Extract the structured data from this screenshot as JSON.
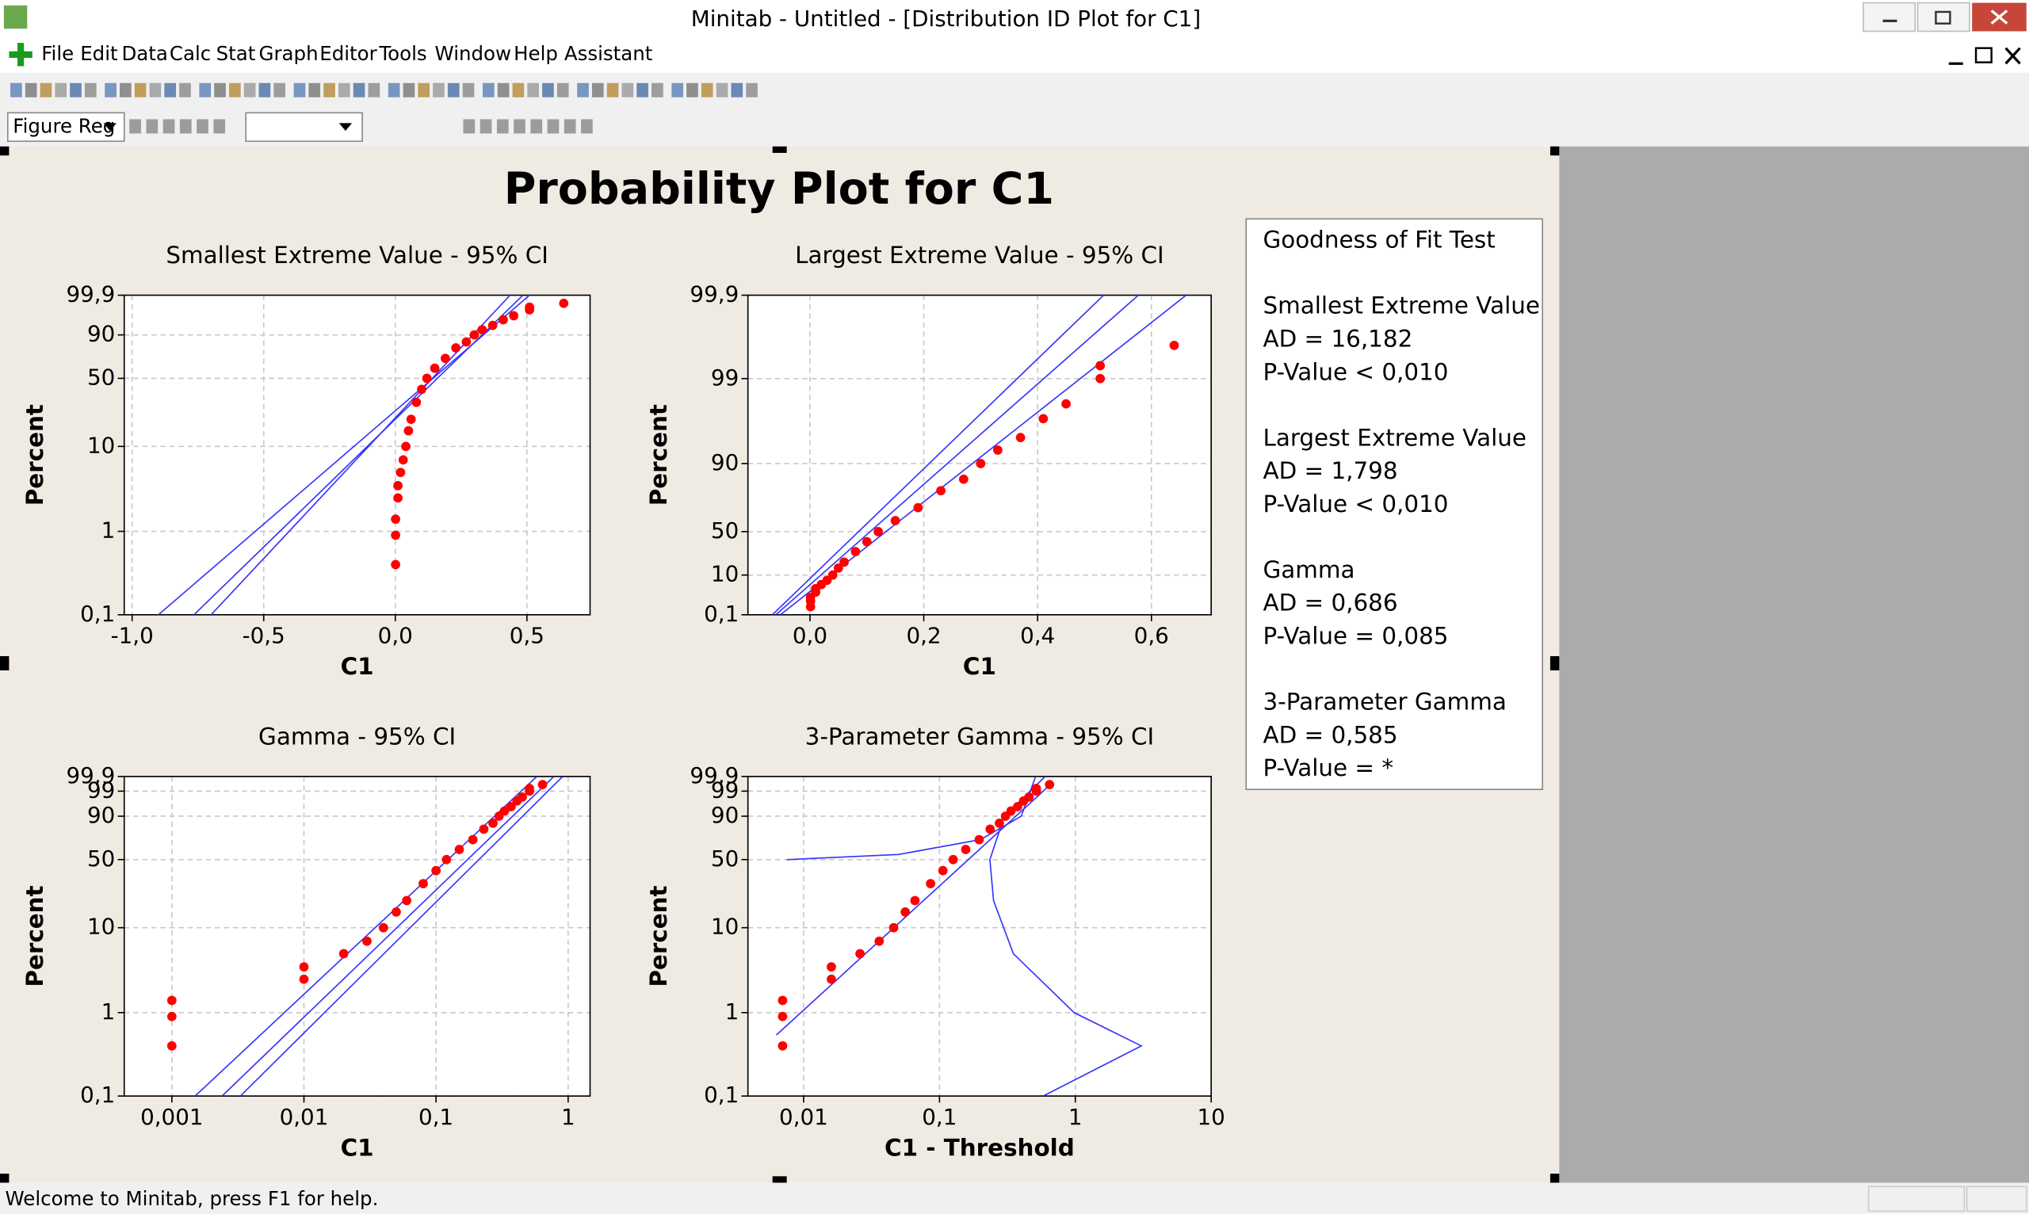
{
  "window": {
    "title": "Minitab - Untitled - [Distribution ID Plot for C1]"
  },
  "menu": [
    "File",
    "Edit",
    "Data",
    "Calc",
    "Stat",
    "Graph",
    "Editor",
    "Tools",
    "Window",
    "Help",
    "Assistant"
  ],
  "toolbar": {
    "figure_region": "Figure Reg"
  },
  "figure_title": "Probability Plot for C1",
  "chart_data": [
    {
      "type": "scatter",
      "title": "Smallest Extreme Value - 95% CI",
      "x_label": "C1",
      "y_label": "Percent",
      "y_scale": "sev",
      "x_log": false,
      "grid": true,
      "xlim": [
        -1.03,
        0.74
      ],
      "xticks": [
        {
          "value": -1,
          "label": "-1,0"
        },
        {
          "value": -0.5,
          "label": "-0,5"
        },
        {
          "value": 0,
          "label": "0,0"
        },
        {
          "value": 0.5,
          "label": "0,5"
        }
      ],
      "ylim": [
        0.1,
        99.9
      ],
      "yticks": [
        {
          "value": 0.1,
          "label": "0,1"
        },
        1,
        10,
        50,
        90,
        {
          "value": 99.9,
          "label": "99,9"
        }
      ],
      "series": [
        {
          "color": "#ff0000",
          "x": [
            0.001,
            0.001,
            0.001,
            0.01,
            0.01,
            0.02,
            0.03,
            0.04,
            0.05,
            0.06,
            0.08,
            0.1,
            0.12,
            0.15,
            0.19,
            0.23,
            0.27,
            0.3,
            0.33,
            0.37,
            0.41,
            0.45,
            0.51,
            0.51,
            0.64
          ],
          "values": [
            0.4,
            0.9,
            1.4,
            2.5,
            3.5,
            5,
            7,
            10,
            15,
            20,
            30,
            40,
            50,
            60,
            70,
            80,
            85,
            90,
            93,
            95,
            97,
            98,
            99,
            99.3,
            99.6
          ]
        }
      ],
      "fit_lines": [
        {
          "color": "#3333ff",
          "x": [
            -0.765,
            0.485
          ],
          "values": [
            0.1,
            99.9
          ]
        },
        {
          "color": "#3333ff",
          "x": [
            -0.9,
            0.51
          ],
          "values": [
            0.1,
            99.9
          ]
        },
        {
          "color": "#3333ff",
          "x": [
            -0.7,
            0.436
          ],
          "values": [
            0.1,
            99.9
          ]
        }
      ]
    },
    {
      "type": "scatter",
      "title": "Largest Extreme Value - 95% CI",
      "x_label": "C1",
      "y_label": "Percent",
      "y_scale": "lev",
      "x_log": false,
      "grid": true,
      "xlim": [
        -0.109,
        0.705
      ],
      "xticks": [
        {
          "value": 0,
          "label": "0,0"
        },
        {
          "value": 0.2,
          "label": "0,2"
        },
        {
          "value": 0.4,
          "label": "0,4"
        },
        {
          "value": 0.6,
          "label": "0,6"
        }
      ],
      "ylim": [
        0.1,
        99.9
      ],
      "yticks": [
        {
          "value": 0.1,
          "label": "0,1"
        },
        10,
        50,
        90,
        99,
        {
          "value": 99.9,
          "label": "99,9"
        }
      ],
      "series": [
        {
          "color": "#ff0000",
          "x": [
            0.001,
            0.001,
            0.001,
            0.01,
            0.01,
            0.02,
            0.03,
            0.04,
            0.05,
            0.06,
            0.08,
            0.1,
            0.12,
            0.15,
            0.19,
            0.23,
            0.27,
            0.3,
            0.33,
            0.37,
            0.41,
            0.45,
            0.51,
            0.51,
            0.64
          ],
          "values": [
            0.4,
            0.9,
            1.4,
            2.5,
            3.5,
            5,
            7,
            10,
            15,
            20,
            30,
            40,
            50,
            60,
            70,
            80,
            85,
            90,
            93,
            95,
            97,
            98,
            99,
            99.3,
            99.6
          ]
        }
      ],
      "fit_lines": [
        {
          "color": "#3333ff",
          "x": [
            -0.06,
            0.577
          ],
          "values": [
            0.1,
            99.9
          ]
        },
        {
          "color": "#3333ff",
          "x": [
            -0.066,
            0.516
          ],
          "values": [
            0.1,
            99.9
          ]
        },
        {
          "color": "#3333ff",
          "x": [
            -0.052,
            0.661
          ],
          "values": [
            0.1,
            99.9
          ]
        }
      ]
    },
    {
      "type": "scatter",
      "title": "Gamma - 95% CI",
      "x_label": "C1",
      "y_label": "Percent",
      "y_scale": "sev",
      "x_log": true,
      "grid": true,
      "xlim": [
        0.000436,
        1.466
      ],
      "xticks": [
        {
          "value": 0.001,
          "label": "0,001"
        },
        {
          "value": 0.01,
          "label": "0,01"
        },
        {
          "value": 0.1,
          "label": "0,1"
        },
        1
      ],
      "ylim": [
        0.1,
        99.9
      ],
      "yticks": [
        {
          "value": 0.1,
          "label": "0,1"
        },
        1,
        10,
        50,
        90,
        99,
        {
          "value": 99.9,
          "label": "99,9"
        }
      ],
      "series": [
        {
          "color": "#ff0000",
          "x": [
            0.001,
            0.001,
            0.001,
            0.01,
            0.01,
            0.02,
            0.03,
            0.04,
            0.05,
            0.06,
            0.08,
            0.1,
            0.12,
            0.15,
            0.19,
            0.23,
            0.27,
            0.3,
            0.33,
            0.37,
            0.41,
            0.45,
            0.51,
            0.51,
            0.64
          ],
          "values": [
            0.4,
            0.9,
            1.4,
            2.5,
            3.5,
            5,
            7,
            10,
            15,
            20,
            30,
            40,
            50,
            60,
            70,
            80,
            85,
            90,
            93,
            95,
            97,
            98,
            99,
            99.3,
            99.6
          ]
        }
      ],
      "fit_lines": [
        {
          "color": "#3333ff",
          "x": [
            0.0024,
            0.78
          ],
          "values": [
            0.1,
            99.9
          ]
        },
        {
          "color": "#3333ff",
          "x": [
            0.0015,
            0.58
          ],
          "values": [
            0.1,
            99.9
          ]
        },
        {
          "color": "#3333ff",
          "x": [
            0.0033,
            0.91
          ],
          "values": [
            0.1,
            99.9
          ]
        }
      ]
    },
    {
      "type": "scatter",
      "title": "3-Parameter Gamma - 95% CI",
      "x_label": "C1 - Threshold",
      "y_label": "Percent",
      "y_scale": "sev",
      "x_log": true,
      "grid": true,
      "xlim": [
        0.00389,
        10
      ],
      "xticks": [
        {
          "value": 0.01,
          "label": "0,01"
        },
        {
          "value": 0.1,
          "label": "0,1"
        },
        1,
        10
      ],
      "ylim": [
        0.1,
        99.9
      ],
      "yticks": [
        {
          "value": 0.1,
          "label": "0,1"
        },
        1,
        10,
        50,
        90,
        99,
        {
          "value": 99.9,
          "label": "99,9"
        }
      ],
      "series": [
        {
          "color": "#ff0000",
          "x": [
            0.007,
            0.007,
            0.007,
            0.016,
            0.016,
            0.026,
            0.036,
            0.046,
            0.056,
            0.066,
            0.086,
            0.106,
            0.126,
            0.156,
            0.196,
            0.236,
            0.276,
            0.306,
            0.336,
            0.376,
            0.416,
            0.456,
            0.516,
            0.516,
            0.646
          ],
          "values": [
            0.4,
            0.9,
            1.4,
            2.5,
            3.5,
            5,
            7,
            10,
            15,
            20,
            30,
            40,
            50,
            60,
            70,
            80,
            85,
            90,
            93,
            95,
            97,
            98,
            99,
            99.3,
            99.6
          ]
        }
      ],
      "fit_lines": [
        {
          "color": "#3333ff",
          "x": [
            0.0063,
            0.66
          ],
          "values": [
            0.54,
            99.62
          ]
        },
        {
          "color": "#3333ff",
          "x": [
            0.0075,
            0.05,
            0.2,
            0.4,
            0.51
          ],
          "values": [
            50,
            55,
            70,
            90,
            99.9
          ]
        },
        {
          "color": "#3333ff",
          "x": [
            0.6,
            0.3,
            0.235,
            0.25,
            0.35,
            0.98,
            3.06,
            0.58
          ],
          "values": [
            99.9,
            90,
            50,
            20,
            5,
            1,
            0.4,
            0.1
          ]
        }
      ]
    }
  ],
  "goodness_of_fit": {
    "title": "Goodness of Fit Test",
    "groups": [
      {
        "name": "Smallest Extreme Value",
        "lines": [
          "AD = 16,182",
          "P-Value < 0,010"
        ]
      },
      {
        "name": "Largest Extreme Value",
        "lines": [
          "AD = 1,798",
          "P-Value < 0,010"
        ]
      },
      {
        "name": "Gamma",
        "lines": [
          "AD = 0,686",
          "P-Value = 0,085"
        ]
      },
      {
        "name": "3-Parameter Gamma",
        "lines": [
          "AD = 0,585",
          "P-Value = *"
        ]
      }
    ]
  },
  "status_bar": "Welcome to Minitab, press F1 for help."
}
